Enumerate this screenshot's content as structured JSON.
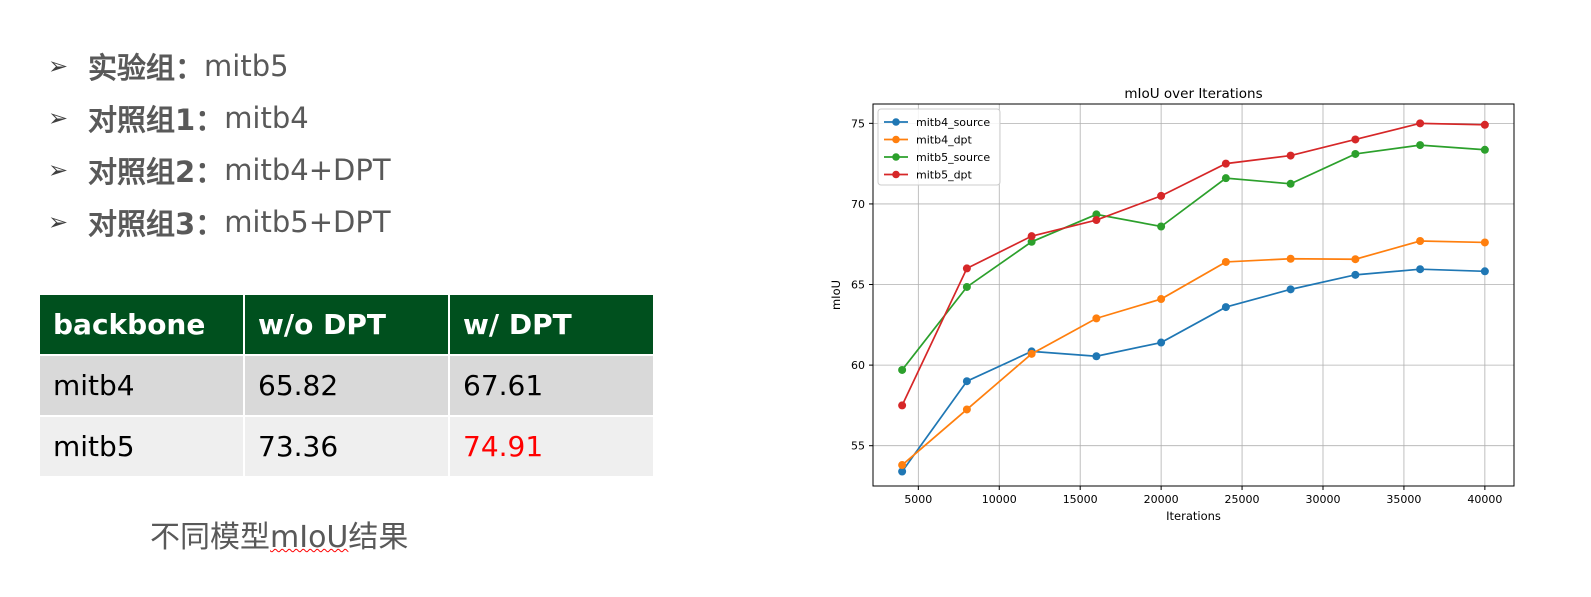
{
  "bullets": [
    {
      "key": "实验组：",
      "value": "mitb5"
    },
    {
      "key": "对照组1：",
      "value": "mitb4"
    },
    {
      "key": "对照组2：",
      "value": "mitb4+DPT"
    },
    {
      "key": "对照组3：",
      "value": "mitb5+DPT"
    }
  ],
  "bullet_marker": "➢",
  "table": {
    "headers": [
      "backbone",
      "w/o DPT",
      "w/ DPT"
    ],
    "rows": [
      [
        "mitb4",
        "65.82",
        "67.61"
      ],
      [
        "mitb5",
        "73.36",
        "74.91"
      ]
    ],
    "header_color": "#00501e",
    "highlight_color": "#ff0000"
  },
  "caption": {
    "pre": "不同模型",
    "squiggle": "mIoU",
    "post": "结果"
  },
  "chart_data": {
    "type": "line",
    "title": "mIoU over Iterations",
    "xlabel": "Iterations",
    "ylabel": "mIoU",
    "x": [
      4000,
      8000,
      12000,
      16000,
      20000,
      24000,
      28000,
      32000,
      36000,
      40000
    ],
    "xlim": [
      2200,
      41800
    ],
    "ylim": [
      52.5,
      76.2
    ],
    "xticks": [
      5000,
      10000,
      15000,
      20000,
      25000,
      30000,
      35000,
      40000
    ],
    "yticks": [
      55,
      60,
      65,
      70,
      75
    ],
    "grid": true,
    "legend": "top-left",
    "series": [
      {
        "name": "mitb4_source",
        "color": "#1f77b4",
        "values": [
          53.4,
          59.0,
          60.85,
          60.55,
          61.4,
          63.6,
          64.7,
          65.6,
          65.95,
          65.82
        ]
      },
      {
        "name": "mitb4_dpt",
        "color": "#ff7f0e",
        "values": [
          53.8,
          57.25,
          60.7,
          62.9,
          64.1,
          66.4,
          66.6,
          66.57,
          67.7,
          67.61
        ]
      },
      {
        "name": "mitb5_source",
        "color": "#2ca02c",
        "values": [
          59.7,
          64.85,
          67.65,
          69.35,
          68.6,
          71.6,
          71.25,
          73.1,
          73.65,
          73.36
        ]
      },
      {
        "name": "mitb5_dpt",
        "color": "#d62728",
        "values": [
          57.5,
          66.0,
          68.0,
          69.0,
          70.5,
          72.5,
          73.0,
          74.0,
          75.0,
          74.91
        ]
      }
    ]
  }
}
